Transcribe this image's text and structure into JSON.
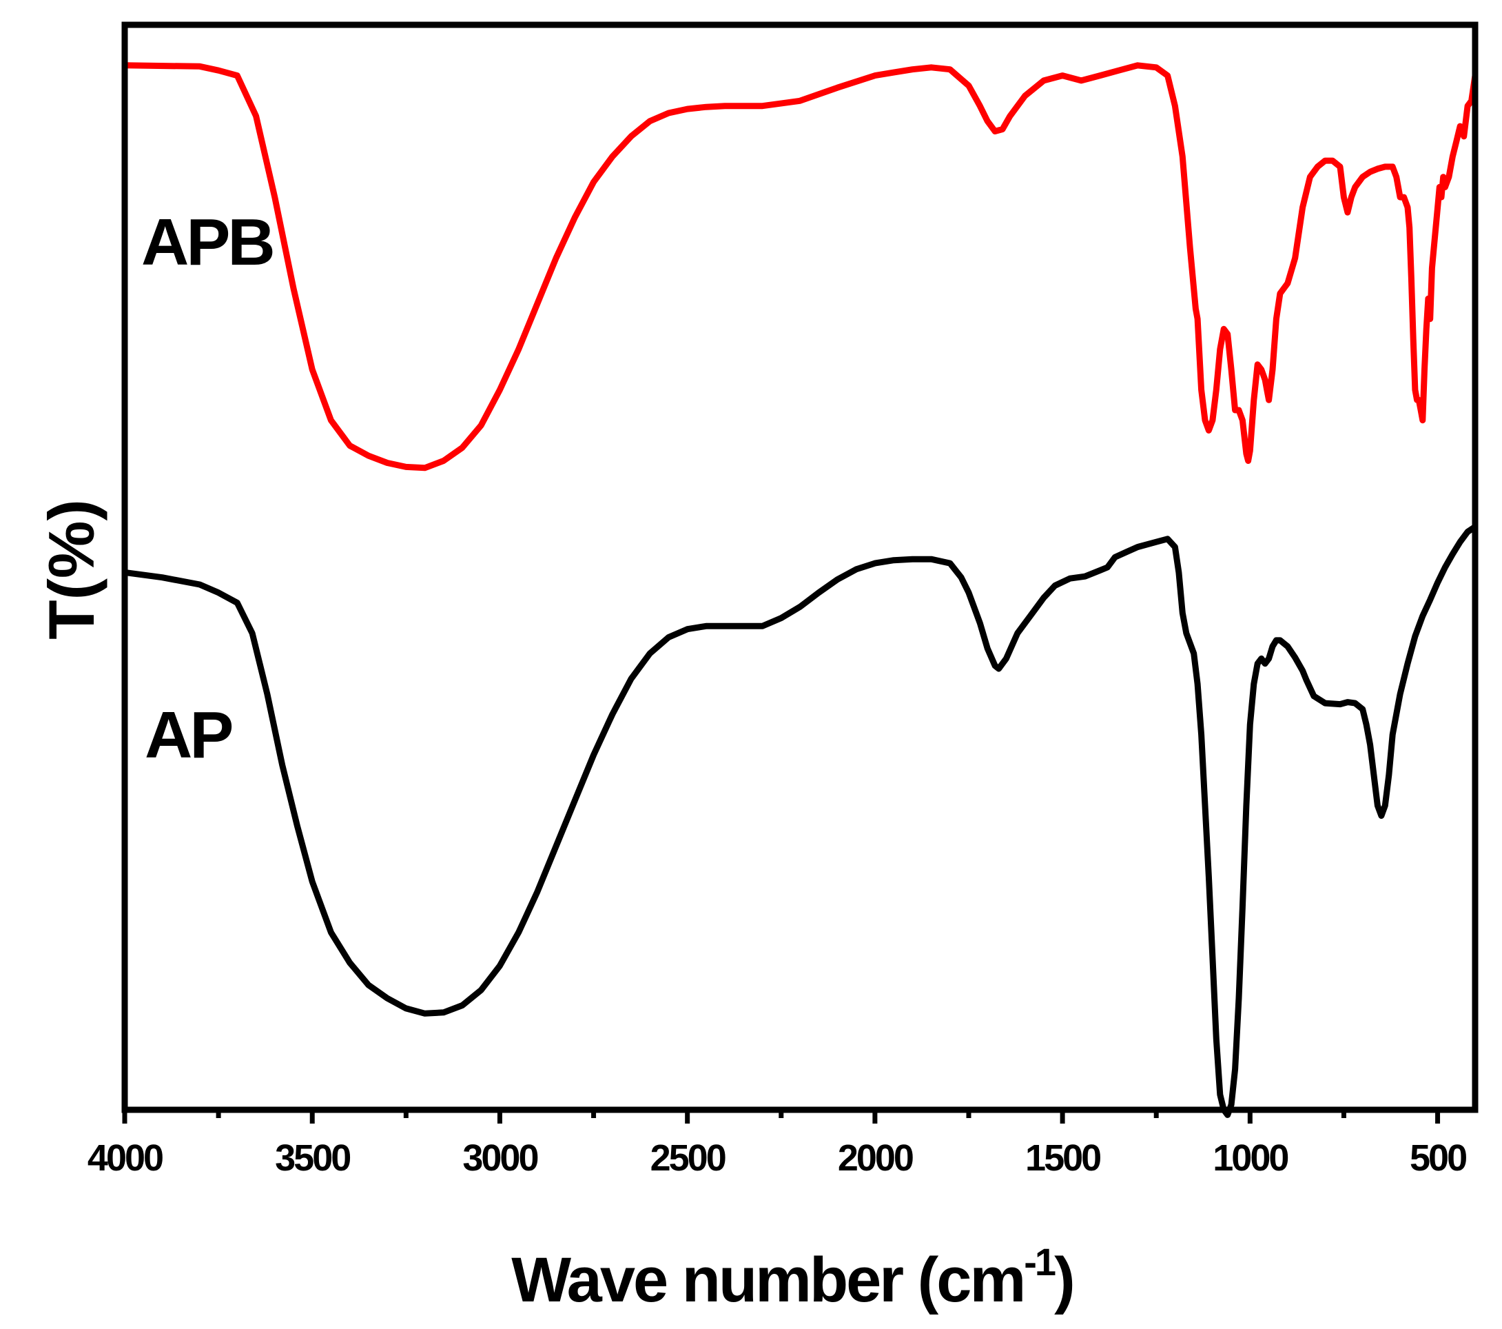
{
  "chart_data": {
    "type": "line",
    "title": "",
    "xlabel": "Wave number (cm",
    "xlabel_sup": "-1",
    "xlabel_close": ")",
    "ylabel": "T(%)",
    "xlim": [
      4000,
      400
    ],
    "x_reversed": true,
    "y_ticks_shown": false,
    "x_ticks": [
      4000,
      3500,
      3000,
      2500,
      2000,
      1500,
      1000,
      500
    ],
    "x_tick_labels": [
      "4000",
      "3500",
      "3000",
      "2500",
      "2000",
      "1500",
      "1000",
      "500"
    ],
    "ylim": [
      -5,
      102
    ],
    "grid": false,
    "series": [
      {
        "name": "APB",
        "color": "#ff0000",
        "points": [
          [
            4000,
            98
          ],
          [
            3800,
            97.9
          ],
          [
            3750,
            97.5
          ],
          [
            3700,
            97
          ],
          [
            3650,
            93
          ],
          [
            3600,
            85
          ],
          [
            3550,
            76
          ],
          [
            3500,
            68
          ],
          [
            3450,
            63
          ],
          [
            3400,
            60.5
          ],
          [
            3350,
            59.5
          ],
          [
            3300,
            58.8
          ],
          [
            3250,
            58.4
          ],
          [
            3200,
            58.3
          ],
          [
            3150,
            59
          ],
          [
            3100,
            60.3
          ],
          [
            3050,
            62.5
          ],
          [
            3000,
            66
          ],
          [
            2950,
            70
          ],
          [
            2900,
            74.5
          ],
          [
            2850,
            79
          ],
          [
            2800,
            83
          ],
          [
            2750,
            86.5
          ],
          [
            2700,
            89
          ],
          [
            2650,
            91
          ],
          [
            2600,
            92.5
          ],
          [
            2550,
            93.3
          ],
          [
            2500,
            93.7
          ],
          [
            2450,
            93.9
          ],
          [
            2400,
            94
          ],
          [
            2300,
            94
          ],
          [
            2200,
            94.5
          ],
          [
            2100,
            95.8
          ],
          [
            2000,
            97
          ],
          [
            1950,
            97.3
          ],
          [
            1900,
            97.6
          ],
          [
            1850,
            97.8
          ],
          [
            1800,
            97.6
          ],
          [
            1750,
            96
          ],
          [
            1720,
            94
          ],
          [
            1700,
            92.5
          ],
          [
            1680,
            91.5
          ],
          [
            1660,
            91.7
          ],
          [
            1640,
            93
          ],
          [
            1600,
            95
          ],
          [
            1550,
            96.5
          ],
          [
            1500,
            97
          ],
          [
            1450,
            96.5
          ],
          [
            1400,
            97
          ],
          [
            1350,
            97.5
          ],
          [
            1300,
            98
          ],
          [
            1250,
            97.8
          ],
          [
            1220,
            97
          ],
          [
            1200,
            94
          ],
          [
            1180,
            89
          ],
          [
            1160,
            80
          ],
          [
            1145,
            74
          ],
          [
            1140,
            73
          ],
          [
            1130,
            66
          ],
          [
            1120,
            63
          ],
          [
            1110,
            62
          ],
          [
            1100,
            63
          ],
          [
            1090,
            66
          ],
          [
            1080,
            70
          ],
          [
            1070,
            72
          ],
          [
            1060,
            71.5
          ],
          [
            1050,
            68
          ],
          [
            1040,
            64
          ],
          [
            1030,
            64
          ],
          [
            1020,
            63
          ],
          [
            1010,
            59.7
          ],
          [
            1005,
            59
          ],
          [
            1000,
            60
          ],
          [
            990,
            65
          ],
          [
            980,
            68.5
          ],
          [
            970,
            68
          ],
          [
            960,
            67
          ],
          [
            955,
            66
          ],
          [
            950,
            65
          ],
          [
            940,
            68
          ],
          [
            930,
            73
          ],
          [
            920,
            75.5
          ],
          [
            910,
            76
          ],
          [
            900,
            76.5
          ],
          [
            880,
            79
          ],
          [
            860,
            84
          ],
          [
            840,
            87
          ],
          [
            820,
            88
          ],
          [
            800,
            88.6
          ],
          [
            780,
            88.6
          ],
          [
            760,
            88
          ],
          [
            750,
            85
          ],
          [
            740,
            83.5
          ],
          [
            730,
            85
          ],
          [
            720,
            86
          ],
          [
            700,
            87
          ],
          [
            680,
            87.5
          ],
          [
            660,
            87.8
          ],
          [
            640,
            88
          ],
          [
            620,
            88
          ],
          [
            610,
            87
          ],
          [
            600,
            85
          ],
          [
            590,
            85
          ],
          [
            580,
            84
          ],
          [
            575,
            82
          ],
          [
            570,
            77
          ],
          [
            565,
            71
          ],
          [
            560,
            66
          ],
          [
            555,
            65
          ],
          [
            550,
            65
          ],
          [
            545,
            64
          ],
          [
            540,
            63
          ],
          [
            535,
            68
          ],
          [
            530,
            72
          ],
          [
            525,
            75
          ],
          [
            520,
            73
          ],
          [
            515,
            78
          ],
          [
            510,
            80
          ],
          [
            500,
            84
          ],
          [
            495,
            86
          ],
          [
            490,
            85
          ],
          [
            485,
            87
          ],
          [
            480,
            86
          ],
          [
            470,
            87
          ],
          [
            460,
            89
          ],
          [
            450,
            90.5
          ],
          [
            440,
            92
          ],
          [
            430,
            91
          ],
          [
            420,
            94
          ],
          [
            410,
            94.5
          ],
          [
            400,
            97
          ]
        ]
      },
      {
        "name": "AP",
        "color": "#000000",
        "points": [
          [
            4000,
            48
          ],
          [
            3900,
            47.5
          ],
          [
            3800,
            46.8
          ],
          [
            3750,
            46
          ],
          [
            3700,
            45
          ],
          [
            3660,
            42
          ],
          [
            3620,
            36
          ],
          [
            3580,
            29
          ],
          [
            3540,
            23
          ],
          [
            3500,
            17.5
          ],
          [
            3450,
            12.5
          ],
          [
            3400,
            9.5
          ],
          [
            3350,
            7.3
          ],
          [
            3300,
            6
          ],
          [
            3250,
            5
          ],
          [
            3200,
            4.5
          ],
          [
            3150,
            4.6
          ],
          [
            3100,
            5.3
          ],
          [
            3050,
            6.8
          ],
          [
            3000,
            9.2
          ],
          [
            2950,
            12.5
          ],
          [
            2900,
            16.5
          ],
          [
            2850,
            21
          ],
          [
            2800,
            25.5
          ],
          [
            2750,
            30
          ],
          [
            2700,
            34
          ],
          [
            2650,
            37.5
          ],
          [
            2600,
            40
          ],
          [
            2550,
            41.6
          ],
          [
            2500,
            42.4
          ],
          [
            2450,
            42.7
          ],
          [
            2400,
            42.7
          ],
          [
            2300,
            42.7
          ],
          [
            2250,
            43.5
          ],
          [
            2200,
            44.6
          ],
          [
            2150,
            46
          ],
          [
            2100,
            47.3
          ],
          [
            2050,
            48.3
          ],
          [
            2000,
            48.9
          ],
          [
            1950,
            49.2
          ],
          [
            1900,
            49.3
          ],
          [
            1850,
            49.3
          ],
          [
            1800,
            48.9
          ],
          [
            1770,
            47.5
          ],
          [
            1750,
            46
          ],
          [
            1720,
            43
          ],
          [
            1700,
            40.5
          ],
          [
            1680,
            38.8
          ],
          [
            1670,
            38.5
          ],
          [
            1650,
            39.5
          ],
          [
            1620,
            42
          ],
          [
            1580,
            44
          ],
          [
            1550,
            45.5
          ],
          [
            1520,
            46.7
          ],
          [
            1480,
            47.4
          ],
          [
            1440,
            47.6
          ],
          [
            1400,
            48.2
          ],
          [
            1380,
            48.5
          ],
          [
            1360,
            49.5
          ],
          [
            1330,
            50
          ],
          [
            1300,
            50.5
          ],
          [
            1250,
            51
          ],
          [
            1220,
            51.3
          ],
          [
            1200,
            50.5
          ],
          [
            1190,
            48
          ],
          [
            1180,
            44
          ],
          [
            1170,
            42
          ],
          [
            1150,
            40
          ],
          [
            1140,
            37
          ],
          [
            1130,
            32
          ],
          [
            1120,
            25
          ],
          [
            1110,
            18
          ],
          [
            1100,
            10
          ],
          [
            1090,
            2
          ],
          [
            1080,
            -3.5
          ],
          [
            1070,
            -5
          ],
          [
            1060,
            -5.5
          ],
          [
            1050,
            -4.5
          ],
          [
            1040,
            -1
          ],
          [
            1030,
            6
          ],
          [
            1020,
            15
          ],
          [
            1010,
            25
          ],
          [
            1000,
            33
          ],
          [
            990,
            37
          ],
          [
            980,
            39
          ],
          [
            970,
            39.5
          ],
          [
            960,
            39
          ],
          [
            950,
            39.5
          ],
          [
            940,
            40.7
          ],
          [
            930,
            41.3
          ],
          [
            920,
            41.3
          ],
          [
            900,
            40.7
          ],
          [
            880,
            39.6
          ],
          [
            860,
            38.3
          ],
          [
            850,
            37.4
          ],
          [
            830,
            35.8
          ],
          [
            800,
            35.1
          ],
          [
            760,
            35
          ],
          [
            740,
            35.2
          ],
          [
            720,
            35.1
          ],
          [
            700,
            34.5
          ],
          [
            690,
            33
          ],
          [
            680,
            31
          ],
          [
            670,
            28
          ],
          [
            660,
            25
          ],
          [
            650,
            24
          ],
          [
            640,
            25
          ],
          [
            630,
            28
          ],
          [
            620,
            32
          ],
          [
            600,
            36
          ],
          [
            580,
            39
          ],
          [
            560,
            41.7
          ],
          [
            540,
            43.7
          ],
          [
            520,
            45.3
          ],
          [
            500,
            47
          ],
          [
            480,
            48.5
          ],
          [
            460,
            49.8
          ],
          [
            440,
            51
          ],
          [
            420,
            52
          ],
          [
            400,
            52.5
          ]
        ]
      }
    ],
    "annotations": [
      {
        "text": "APB",
        "series": "APB"
      },
      {
        "text": "AP",
        "series": "AP"
      }
    ]
  }
}
